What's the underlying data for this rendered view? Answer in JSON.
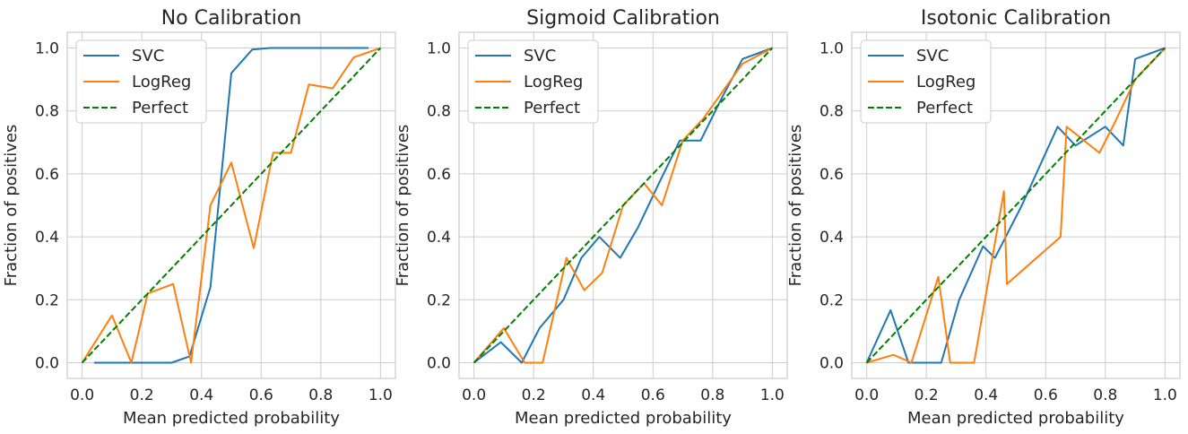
{
  "chart_data": [
    {
      "type": "line",
      "title": "No Calibration",
      "xlabel": "Mean predicted probability",
      "ylabel": "Fraction of positives",
      "xlim": [
        -0.05,
        1.05
      ],
      "ylim": [
        -0.05,
        1.05
      ],
      "xticks": [
        0.0,
        0.2,
        0.4,
        0.6,
        0.8,
        1.0
      ],
      "yticks": [
        0.0,
        0.2,
        0.4,
        0.6,
        0.8,
        1.0
      ],
      "tick_labels": [
        "0.0",
        "0.2",
        "0.4",
        "0.6",
        "0.8",
        "1.0"
      ],
      "legend_position": "top-left",
      "series": [
        {
          "name": "SVC",
          "color": "#1f77b4",
          "style": "solid",
          "x": [
            0.04,
            0.1,
            0.17,
            0.23,
            0.3,
            0.36,
            0.43,
            0.5,
            0.57,
            0.63,
            0.7,
            0.77,
            0.83,
            0.9,
            0.96
          ],
          "y": [
            0.0,
            0.0,
            0.0,
            0.0,
            0.0,
            0.02,
            0.24,
            0.92,
            0.995,
            1.0,
            1.0,
            1.0,
            1.0,
            1.0,
            1.0
          ]
        },
        {
          "name": "LogReg",
          "color": "#ff7f0e",
          "style": "solid",
          "x": [
            0.0,
            0.1,
            0.165,
            0.22,
            0.305,
            0.365,
            0.43,
            0.5,
            0.575,
            0.64,
            0.7,
            0.76,
            0.84,
            0.91,
            1.0
          ],
          "y": [
            0.0,
            0.15,
            0.0,
            0.22,
            0.25,
            0.0,
            0.5,
            0.636,
            0.364,
            0.667,
            0.667,
            0.884,
            0.872,
            0.97,
            1.0
          ]
        },
        {
          "name": "Perfect",
          "color": "#008000",
          "style": "dashed",
          "x": [
            0.0,
            1.0
          ],
          "y": [
            0.0,
            1.0
          ]
        }
      ]
    },
    {
      "type": "line",
      "title": "Sigmoid Calibration",
      "xlabel": "Mean predicted probability",
      "ylabel": "Fraction of positives",
      "xlim": [
        -0.05,
        1.05
      ],
      "ylim": [
        -0.05,
        1.05
      ],
      "xticks": [
        0.0,
        0.2,
        0.4,
        0.6,
        0.8,
        1.0
      ],
      "yticks": [
        0.0,
        0.2,
        0.4,
        0.6,
        0.8,
        1.0
      ],
      "tick_labels": [
        "0.0",
        "0.2",
        "0.4",
        "0.6",
        "0.8",
        "1.0"
      ],
      "legend_position": "top-left",
      "series": [
        {
          "name": "SVC",
          "color": "#1f77b4",
          "style": "solid",
          "x": [
            0.0,
            0.09,
            0.16,
            0.22,
            0.3,
            0.36,
            0.42,
            0.49,
            0.55,
            0.62,
            0.69,
            0.76,
            0.83,
            0.9,
            1.0
          ],
          "y": [
            0.0,
            0.065,
            0.0,
            0.11,
            0.2,
            0.333,
            0.4,
            0.333,
            0.43,
            0.57,
            0.706,
            0.706,
            0.84,
            0.965,
            1.0
          ]
        },
        {
          "name": "LogReg",
          "color": "#ff7f0e",
          "style": "solid",
          "x": [
            0.0,
            0.1,
            0.17,
            0.23,
            0.31,
            0.37,
            0.43,
            0.5,
            0.57,
            0.63,
            0.7,
            0.77,
            0.83,
            0.9,
            1.0
          ],
          "y": [
            0.0,
            0.11,
            0.0,
            0.0,
            0.333,
            0.23,
            0.286,
            0.5,
            0.57,
            0.5,
            0.706,
            0.777,
            0.857,
            0.95,
            1.0
          ]
        },
        {
          "name": "Perfect",
          "color": "#008000",
          "style": "dashed",
          "x": [
            0.0,
            1.0
          ],
          "y": [
            0.0,
            1.0
          ]
        }
      ]
    },
    {
      "type": "line",
      "title": "Isotonic Calibration",
      "xlabel": "Mean predicted probability",
      "ylabel": "Fraction of positives",
      "xlim": [
        -0.05,
        1.05
      ],
      "ylim": [
        -0.05,
        1.05
      ],
      "xticks": [
        0.0,
        0.2,
        0.4,
        0.6,
        0.8,
        1.0
      ],
      "yticks": [
        0.0,
        0.2,
        0.4,
        0.6,
        0.8,
        1.0
      ],
      "tick_labels": [
        "0.0",
        "0.2",
        "0.4",
        "0.6",
        "0.8",
        "1.0"
      ],
      "legend_position": "top-left",
      "series": [
        {
          "name": "SVC",
          "color": "#1f77b4",
          "style": "solid",
          "x": [
            0.0,
            0.08,
            0.14,
            0.25,
            0.31,
            0.39,
            0.43,
            0.52,
            0.64,
            0.7,
            0.8,
            0.86,
            0.9,
            1.0
          ],
          "y": [
            0.0,
            0.167,
            0.0,
            0.0,
            0.2,
            0.37,
            0.333,
            0.5,
            0.75,
            0.69,
            0.75,
            0.69,
            0.965,
            1.0
          ]
        },
        {
          "name": "LogReg",
          "color": "#ff7f0e",
          "style": "solid",
          "x": [
            0.0,
            0.09,
            0.15,
            0.24,
            0.28,
            0.36,
            0.46,
            0.47,
            0.65,
            0.67,
            0.78,
            0.83,
            0.9,
            1.0
          ],
          "y": [
            0.0,
            0.025,
            0.0,
            0.273,
            0.0,
            0.0,
            0.545,
            0.25,
            0.4,
            0.75,
            0.667,
            0.76,
            0.9,
            1.0
          ]
        },
        {
          "name": "Perfect",
          "color": "#008000",
          "style": "dashed",
          "x": [
            0.0,
            1.0
          ],
          "y": [
            0.0,
            1.0
          ]
        }
      ]
    }
  ]
}
